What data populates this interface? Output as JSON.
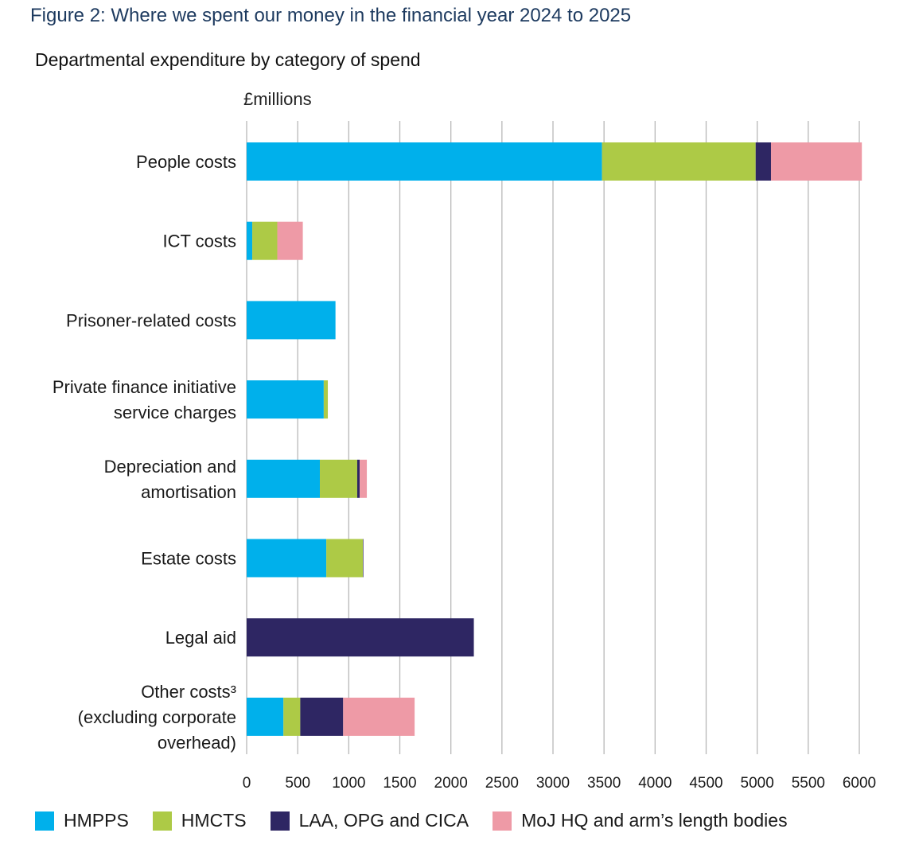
{
  "figure_title": "Figure 2: Where we spent our money in the financial year 2024 to 2025",
  "chart_data": {
    "type": "bar",
    "orientation": "horizontal",
    "stacked": true,
    "title": "Departmental expenditure by category of spend",
    "unit_label": "£millions",
    "xlabel": "",
    "ylabel": "",
    "xlim": [
      0,
      6000
    ],
    "xticks": [
      0,
      500,
      1000,
      1500,
      2000,
      2500,
      3000,
      3500,
      4000,
      4500,
      5000,
      5500,
      6000
    ],
    "grid": true,
    "legend_position": "bottom",
    "categories": [
      [
        "People costs"
      ],
      [
        "ICT costs"
      ],
      [
        "Prisoner-related costs"
      ],
      [
        "Private finance initiative",
        "service charges"
      ],
      [
        "Depreciation and",
        "amortisation"
      ],
      [
        "Estate costs"
      ],
      [
        "Legal aid"
      ],
      [
        "Other costs³",
        "(excluding corporate",
        "overhead)"
      ]
    ],
    "series": [
      {
        "name": "HMPPS",
        "color": "#00b0eb",
        "values": [
          3480,
          55,
          870,
          755,
          717,
          780,
          0,
          360
        ]
      },
      {
        "name": "HMCTS",
        "color": "#adca46",
        "values": [
          1505,
          245,
          0,
          40,
          366,
          358,
          0,
          165
        ]
      },
      {
        "name": "LAA, OPG and CICA",
        "color": "#2e2663",
        "values": [
          150,
          0,
          0,
          0,
          24,
          5,
          2225,
          420
        ]
      },
      {
        "name": "MoJ HQ and arm’s length bodies",
        "color": "#ee9aa6",
        "values": [
          890,
          250,
          0,
          0,
          70,
          0,
          0,
          700
        ]
      }
    ]
  }
}
